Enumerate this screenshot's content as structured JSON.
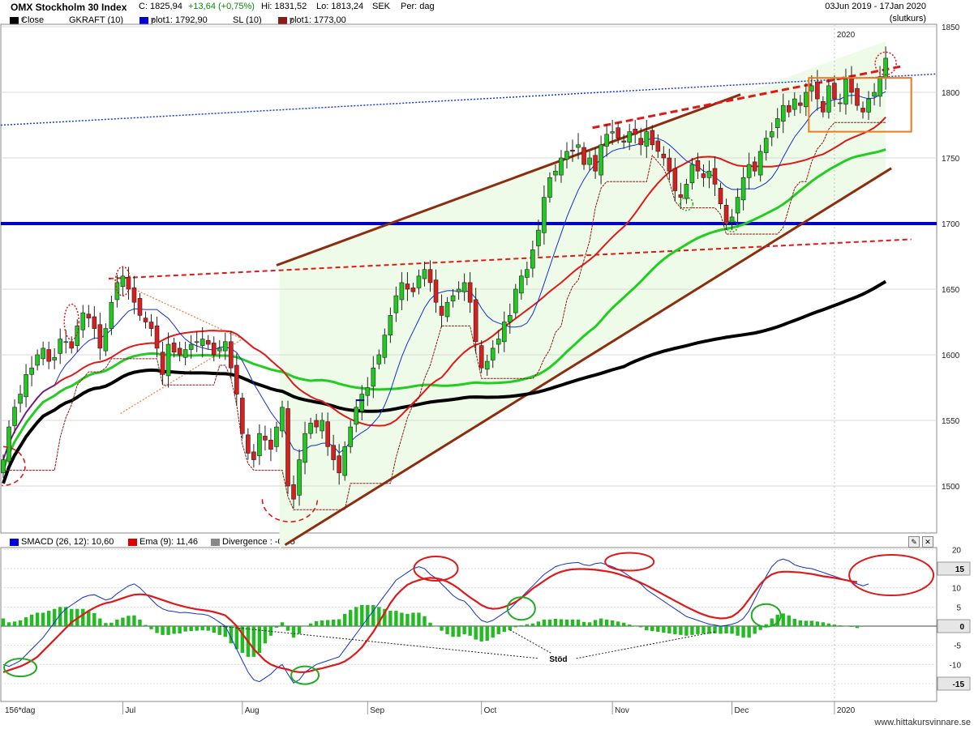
{
  "header": {
    "title": "OMX Stockholm 30 Index",
    "close_label": "C: 1825,94",
    "change": "+13,64 (+0,75%)",
    "high": "Hi: 1831,52",
    "low": "Lo: 1813,24",
    "currency": "SEK",
    "period": "Per: dag",
    "range": "03Jun 2019 - 17Jan 2020",
    "range_note": "(slutkurs)"
  },
  "legend": [
    {
      "label": "Close",
      "color": "#000000"
    },
    {
      "label": "GKRAFT (10)",
      "color": null
    },
    {
      "label": "plot1: 1792,90",
      "color": "#0000cc"
    },
    {
      "label": "SL (10)",
      "color": null
    },
    {
      "label": "plot1: 1773,00",
      "color": "#8b1a1a"
    }
  ],
  "macd_legend": [
    {
      "label": "SMACD (26, 12): 10,60",
      "color": "#0000dd"
    },
    {
      "label": "Ema (9): 11,46",
      "color": "#dd0000"
    },
    {
      "label": "Divergence : -0,85",
      "color": "#888888"
    }
  ],
  "year_marker": "2020",
  "annotation": "Stöd",
  "footer_label": "156*dag",
  "watermark": "www.hittakursvinnare.se",
  "chart_data": [
    {
      "type": "candlestick",
      "title": "OMX Stockholm 30 Index",
      "ylim": [
        1470,
        1855
      ],
      "yticks": [
        1500,
        1550,
        1600,
        1650,
        1700,
        1750,
        1800,
        1850
      ],
      "xticks": [
        {
          "label": "Jul",
          "index": 21
        },
        {
          "label": "Aug",
          "index": 42
        },
        {
          "label": "Sep",
          "index": 64
        },
        {
          "label": "Oct",
          "index": 84
        },
        {
          "label": "Nov",
          "index": 107
        },
        {
          "label": "Dec",
          "index": 128
        },
        {
          "label": "2020",
          "index": 146
        }
      ],
      "close": [
        1520,
        1545,
        1560,
        1570,
        1585,
        1590,
        1600,
        1605,
        1595,
        1598,
        1612,
        1610,
        1605,
        1622,
        1632,
        1628,
        1620,
        1605,
        1620,
        1640,
        1655,
        1660,
        1650,
        1640,
        1630,
        1625,
        1620,
        1605,
        1585,
        1608,
        1602,
        1600,
        1604,
        1608,
        1610,
        1612,
        1608,
        1600,
        1605,
        1610,
        1590,
        1570,
        1540,
        1525,
        1520,
        1540,
        1535,
        1528,
        1545,
        1560,
        1500,
        1490,
        1520,
        1540,
        1548,
        1545,
        1550,
        1530,
        1520,
        1510,
        1530,
        1545,
        1560,
        1570,
        1575,
        1590,
        1600,
        1615,
        1630,
        1645,
        1655,
        1650,
        1648,
        1660,
        1665,
        1655,
        1640,
        1630,
        1640,
        1645,
        1650,
        1655,
        1640,
        1610,
        1590,
        1595,
        1605,
        1612,
        1625,
        1630,
        1650,
        1660,
        1665,
        1680,
        1695,
        1720,
        1735,
        1740,
        1750,
        1755,
        1755,
        1760,
        1745,
        1750,
        1740,
        1760,
        1768,
        1770,
        1765,
        1762,
        1770,
        1768,
        1760,
        1770,
        1760,
        1755,
        1750,
        1740,
        1725,
        1720,
        1730,
        1745,
        1740,
        1735,
        1740,
        1730,
        1715,
        1700,
        1705,
        1720,
        1735,
        1745,
        1740,
        1755,
        1765,
        1770,
        1780,
        1790,
        1785,
        1795,
        1790,
        1800,
        1805,
        1795,
        1785,
        1805,
        1795,
        1792,
        1810,
        1800,
        1790,
        1785,
        1795,
        1800,
        1812,
        1826
      ],
      "series": [
        {
          "name": "plot1: 1792,90",
          "kind": "ma-blue",
          "style": "thin blue line"
        },
        {
          "name": "plot1: 1773,00",
          "kind": "stop-loss",
          "style": "dark red dashed step"
        },
        {
          "name": null,
          "kind": "ma-red",
          "style": "red line"
        },
        {
          "name": null,
          "kind": "ma-green",
          "style": "thick green line"
        },
        {
          "name": null,
          "kind": "ma-black",
          "style": "thick black line"
        }
      ],
      "levels": [
        {
          "value": 1700,
          "color": "#0000cc",
          "style": "thick horizontal support"
        }
      ],
      "trend_channel": {
        "upper": [
          [
            -1,
            1590
          ],
          [
            165,
            1855
          ]
        ],
        "lower": [
          [
            58,
            1478
          ],
          [
            173,
            1788
          ]
        ]
      }
    },
    {
      "type": "macd",
      "ylim": [
        -20,
        20
      ],
      "yticks": [
        -15,
        -10,
        -5,
        0,
        5,
        10,
        15,
        20
      ],
      "badges": [
        "15",
        "0",
        "-15"
      ],
      "macd": [
        -10,
        -10.5,
        -9.8,
        -9,
        -7.5,
        -6,
        -4.5,
        -3,
        -1,
        1,
        3,
        4.5,
        5.5,
        6.5,
        7.5,
        8,
        8.2,
        7.5,
        6.8,
        7.2,
        8.5,
        9.5,
        10.5,
        11,
        10,
        8.5,
        7,
        5.5,
        4.5,
        4,
        3.8,
        3.5,
        3.6,
        3.4,
        3.2,
        3.1,
        2.8,
        2,
        1,
        0,
        -3,
        -6,
        -9,
        -12,
        -14,
        -14.5,
        -13.5,
        -12.5,
        -11,
        -10,
        -12.5,
        -14.8,
        -14,
        -12,
        -11,
        -10,
        -9.5,
        -9,
        -8.5,
        -8,
        -6,
        -4,
        -2,
        0,
        2,
        4,
        6,
        8,
        10,
        12,
        13,
        14,
        15,
        15.5,
        15,
        13.5,
        12.5,
        11,
        9.5,
        8,
        7,
        6.5,
        5,
        3,
        1.5,
        1,
        1.5,
        2.5,
        3.5,
        4.5,
        6,
        7.5,
        9,
        10.5,
        12,
        13.5,
        14.5,
        15.5,
        16,
        16.3,
        16.5,
        16.6,
        16,
        15.8,
        16.3,
        16.5,
        16,
        15.5,
        14.8,
        14,
        13,
        12,
        11,
        9.5,
        8.5,
        7.5,
        6.5,
        5.5,
        4.5,
        3.5,
        2.5,
        2,
        1.5,
        1,
        0.5,
        0.3,
        0,
        0.2,
        0.5,
        1,
        2,
        4,
        7,
        10,
        13,
        15.5,
        17,
        17.5,
        17,
        16,
        15.5,
        15.2,
        15,
        14.5,
        14,
        13.5,
        13,
        12.5,
        12,
        11.5,
        11,
        10.5,
        11
      ],
      "ema": [
        -12,
        -11.5,
        -11,
        -10.5,
        -9.8,
        -9,
        -8,
        -6.5,
        -5,
        -3.5,
        -2,
        -0.5,
        1,
        2,
        3,
        4,
        4.8,
        5.5,
        6,
        6.3,
        6.8,
        7.3,
        7.8,
        8.2,
        8.3,
        8.2,
        7.8,
        7.3,
        6.8,
        6.3,
        5.8,
        5.4,
        5,
        4.7,
        4.4,
        4.2,
        4,
        3.7,
        3.3,
        2.8,
        1.5,
        0,
        -2,
        -4,
        -6,
        -7.5,
        -9,
        -10,
        -10.6,
        -11,
        -11.3,
        -11.8,
        -12,
        -12,
        -11.7,
        -11.3,
        -11,
        -10.6,
        -10.2,
        -9.8,
        -9.2,
        -8.2,
        -7,
        -5.5,
        -3.5,
        -1.5,
        1,
        3.5,
        6,
        8,
        9.5,
        10.8,
        11.5,
        12,
        12.4,
        12.6,
        12.5,
        12.2,
        11.6,
        10.8,
        9.8,
        8.6,
        7.5,
        6.5,
        5.5,
        4.8,
        4.5,
        4.6,
        5,
        5.6,
        6.3,
        7.3,
        8.5,
        9.8,
        10.8,
        11.8,
        12.8,
        13.6,
        14.2,
        14.6,
        14.8,
        14.9,
        14.9,
        14.8,
        14.7,
        14.5,
        14.3,
        14,
        13.6,
        13.1,
        12.6,
        12,
        11.3,
        10.6,
        9.8,
        9,
        8.2,
        7.4,
        6.6,
        5.8,
        5,
        4.3,
        3.6,
        3,
        2.5,
        2.2,
        2,
        2.1,
        2.5,
        3.5,
        5,
        7,
        9,
        11,
        12.5,
        13.5,
        14,
        14.2,
        14.2,
        14.1,
        14,
        13.8,
        13.6,
        13.3,
        13,
        12.8,
        12.6,
        12.3,
        12,
        11.7,
        11.5
      ]
    }
  ]
}
